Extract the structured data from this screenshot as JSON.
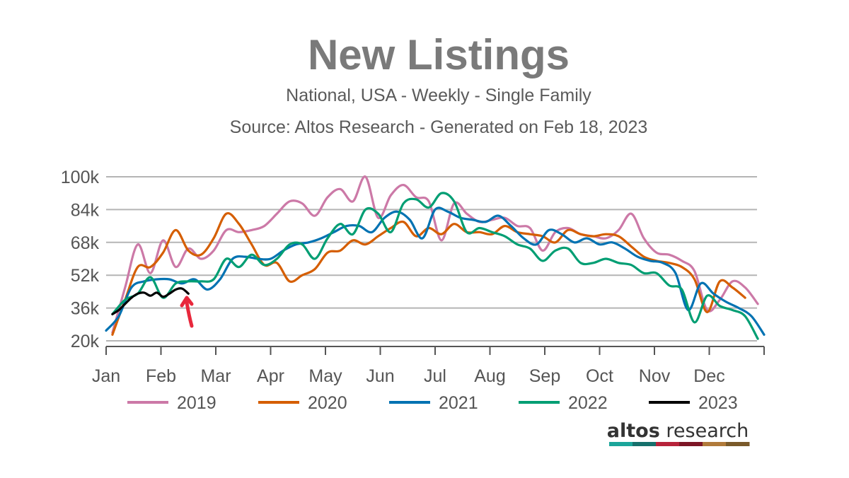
{
  "chart_data": {
    "type": "line",
    "title": "New Listings",
    "subtitle": "National, USA - Weekly - Single Family",
    "source": "Source: Altos Research - Generated on Feb 18, 2023",
    "xlabel": "",
    "ylabel": "",
    "x_ticks": [
      "Jan",
      "Feb",
      "Mar",
      "Apr",
      "May",
      "Jun",
      "Jul",
      "Aug",
      "Sep",
      "Oct",
      "Nov",
      "Dec"
    ],
    "y_ticks": [
      "20k",
      "36k",
      "52k",
      "68k",
      "84k",
      "100k"
    ],
    "y_tick_values": [
      20000,
      36000,
      52000,
      68000,
      84000,
      100000
    ],
    "ylim": [
      20000,
      100000
    ],
    "xlim_weeks": [
      0,
      52
    ],
    "grid": true,
    "legend_position": "bottom",
    "series": [
      {
        "name": "2019",
        "color": "#cc79a7",
        "x": [
          0.5,
          1.5,
          2.5,
          3.5,
          4.5,
          5.5,
          6.5,
          7.5,
          8.5,
          9.5,
          10.5,
          11.5,
          12.5,
          13.5,
          14.5,
          15.5,
          16.5,
          17.5,
          18.5,
          19.5,
          20.5,
          21.5,
          22.5,
          23.5,
          24.5,
          25.5,
          26.5,
          27.5,
          28.5,
          29.5,
          30.5,
          31.5,
          32.5,
          33.5,
          34.5,
          35.5,
          36.5,
          37.5,
          38.5,
          39.5,
          40.5,
          41.5,
          42.5,
          43.5,
          44.5,
          45.5,
          46.5,
          47.5,
          48.5,
          49.5,
          50.5,
          51.5
        ],
        "y": [
          24000,
          46000,
          67000,
          53000,
          69000,
          56000,
          65000,
          60000,
          64000,
          74000,
          73000,
          74000,
          76000,
          82000,
          88000,
          87000,
          81000,
          90000,
          94000,
          88000,
          100000,
          80000,
          91000,
          96000,
          90000,
          88000,
          69000,
          87000,
          82000,
          78000,
          79000,
          80000,
          76000,
          75000,
          64000,
          73000,
          75000,
          72000,
          71000,
          70000,
          74000,
          82000,
          70000,
          63000,
          62000,
          59000,
          54000,
          35000,
          40000,
          49000,
          46000,
          38000
        ]
      },
      {
        "name": "2020",
        "color": "#d55e00",
        "x": [
          0.5,
          1.5,
          2.5,
          3.5,
          4.5,
          5.5,
          6.5,
          7.5,
          8.5,
          9.5,
          10.5,
          11.5,
          12.5,
          13.5,
          14.5,
          15.5,
          16.5,
          17.5,
          18.5,
          19.5,
          20.5,
          21.5,
          22.5,
          23.5,
          24.5,
          25.5,
          26.5,
          27.5,
          28.5,
          29.5,
          30.5,
          31.5,
          32.5,
          33.5,
          34.5,
          35.5,
          36.5,
          37.5,
          38.5,
          39.5,
          40.5,
          41.5,
          42.5,
          43.5,
          44.5,
          45.5,
          46.5,
          47.5,
          48.5,
          49.5,
          50.5
        ],
        "y": [
          23000,
          40000,
          56000,
          56000,
          63000,
          74000,
          64000,
          62000,
          70000,
          82000,
          77000,
          67000,
          57000,
          58000,
          49000,
          52000,
          55000,
          63000,
          64000,
          69000,
          67000,
          71000,
          75000,
          78000,
          71000,
          75000,
          72000,
          77000,
          73000,
          73000,
          72000,
          76000,
          73000,
          72000,
          71000,
          68000,
          74000,
          72000,
          71000,
          72000,
          71000,
          66000,
          61000,
          59000,
          58000,
          56000,
          50000,
          34000,
          49000,
          46000,
          41000
        ]
      },
      {
        "name": "2021",
        "color": "#0072b2",
        "x": [
          0,
          1,
          2,
          3,
          4,
          5,
          6,
          7,
          8,
          9,
          10,
          11,
          12,
          13,
          14,
          15,
          16,
          17,
          18,
          19,
          20,
          21,
          22,
          23,
          24,
          25,
          26,
          27,
          28,
          29,
          30,
          31,
          32,
          33,
          34,
          35,
          36,
          37,
          38,
          39,
          40,
          41,
          42,
          43,
          44,
          45,
          46,
          47,
          48,
          49,
          50,
          51,
          52
        ],
        "y": [
          25000,
          32000,
          46000,
          49000,
          50000,
          50000,
          48000,
          50000,
          45000,
          50000,
          60000,
          61000,
          60000,
          60000,
          64000,
          67000,
          68000,
          70000,
          73000,
          76000,
          76000,
          73000,
          80000,
          83000,
          79000,
          70000,
          84000,
          83000,
          80000,
          79000,
          78000,
          81000,
          76000,
          70000,
          67000,
          74000,
          72000,
          68000,
          70000,
          67000,
          68000,
          65000,
          61000,
          59000,
          58000,
          53000,
          35000,
          48000,
          43000,
          39000,
          36000,
          32000,
          23000
        ]
      },
      {
        "name": "2022",
        "color": "#009e73",
        "x": [
          0.5,
          1.5,
          2.5,
          3.5,
          4.5,
          5.5,
          6.5,
          7.5,
          8.5,
          9.5,
          10.5,
          11.5,
          12.5,
          13.5,
          14.5,
          15.5,
          16.5,
          17.5,
          18.5,
          19.5,
          20.5,
          21.5,
          22.5,
          23.5,
          24.5,
          25.5,
          26.5,
          27.5,
          28.5,
          29.5,
          30.5,
          31.5,
          32.5,
          33.5,
          34.5,
          35.5,
          36.5,
          37.5,
          38.5,
          39.5,
          40.5,
          41.5,
          42.5,
          43.5,
          44.5,
          45.5,
          46.5,
          47.5,
          48.5,
          49.5,
          50.5,
          51.5
        ],
        "y": [
          33000,
          40000,
          43000,
          51000,
          41000,
          48000,
          49000,
          49000,
          50000,
          60000,
          56000,
          62000,
          57000,
          60000,
          67000,
          67000,
          60000,
          70000,
          77000,
          72000,
          84000,
          82000,
          73000,
          87000,
          89000,
          85000,
          92000,
          88000,
          73000,
          75000,
          73000,
          71000,
          67000,
          65000,
          59000,
          64000,
          65000,
          58000,
          58000,
          60000,
          58000,
          57000,
          53000,
          53000,
          47000,
          45000,
          29000,
          42000,
          37000,
          35000,
          32000,
          21000
        ]
      },
      {
        "name": "2023",
        "color": "#000000",
        "x": [
          0.5,
          1,
          1.5,
          2,
          2.5,
          3,
          3.5,
          4,
          4.5,
          5,
          5.5,
          6,
          6.5
        ],
        "y": [
          33000,
          35000,
          38000,
          41000,
          43000,
          43500,
          42000,
          43500,
          41500,
          43000,
          45000,
          45500,
          43000
        ]
      }
    ]
  },
  "brand": {
    "logo_bold": "altos",
    "logo_light": " research",
    "stripe_colors": [
      "#1ba59a",
      "#16706c",
      "#b7233a",
      "#7d1626",
      "#b07a3a",
      "#7a5a2a"
    ]
  }
}
